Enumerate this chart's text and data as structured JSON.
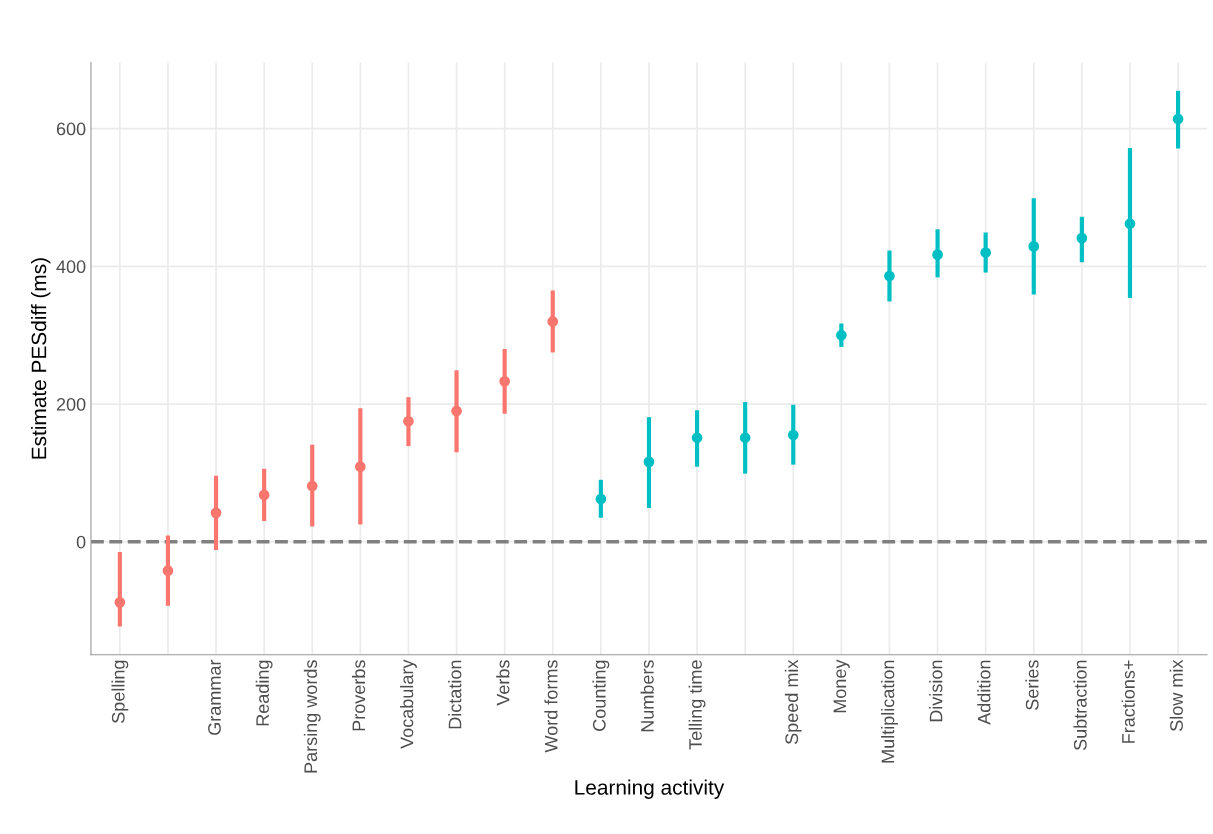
{
  "chart_data": {
    "type": "scatter",
    "xlabel": "Learning activity",
    "ylabel": "Estimate PESdiff (ms)",
    "categories": [
      "Spelling",
      null,
      "Grammar",
      "Reading",
      "Parsing words",
      "Proverbs",
      "Vocabulary",
      "Dictation",
      "Verbs",
      "Word forms",
      "Counting",
      "Numbers",
      "Telling time",
      null,
      "Speed mix",
      "Money",
      "Multiplication",
      "Division",
      "Addition",
      "Series",
      "Subtraction",
      "Fractions+",
      "Slow mix"
    ],
    "series": [
      {
        "color": "#f8766d",
        "values": [
          -88,
          -42,
          42,
          68,
          81,
          109,
          175,
          190,
          233,
          320,
          null,
          null,
          null,
          null,
          null,
          null,
          null,
          null,
          null,
          null,
          null,
          null,
          null
        ],
        "errors": [
          [
            -123,
            -15
          ],
          [
            -93,
            9
          ],
          [
            -12,
            96
          ],
          [
            30,
            106
          ],
          [
            22,
            141
          ],
          [
            25,
            194
          ],
          [
            139,
            210
          ],
          [
            130,
            249
          ],
          [
            186,
            280
          ],
          [
            275,
            365
          ],
          null,
          null,
          null,
          null,
          null,
          null,
          null,
          null,
          null,
          null,
          null,
          null,
          null
        ]
      },
      {
        "color": "#00bfc4",
        "values": [
          null,
          null,
          null,
          null,
          null,
          null,
          null,
          null,
          null,
          null,
          62,
          116,
          151,
          151,
          155,
          300,
          386,
          417,
          420,
          429,
          441,
          462,
          614
        ],
        "errors": [
          null,
          null,
          null,
          null,
          null,
          null,
          null,
          null,
          null,
          null,
          [
            35,
            90
          ],
          [
            49,
            181
          ],
          [
            109,
            191
          ],
          [
            99,
            203
          ],
          [
            112,
            199
          ],
          [
            283,
            317
          ],
          [
            349,
            423
          ],
          [
            384,
            454
          ],
          [
            391,
            449
          ],
          [
            359,
            499
          ],
          [
            406,
            472
          ],
          [
            354,
            572
          ],
          [
            571,
            655
          ]
        ]
      }
    ],
    "ylim": [
      -164,
      696
    ],
    "yticks": [
      0,
      200,
      400,
      600
    ],
    "grid": true,
    "marker": "circle",
    "ref_lines": [
      {
        "axis": "y",
        "value": 0,
        "color": "#808080",
        "line_style": "dashed"
      }
    ]
  }
}
